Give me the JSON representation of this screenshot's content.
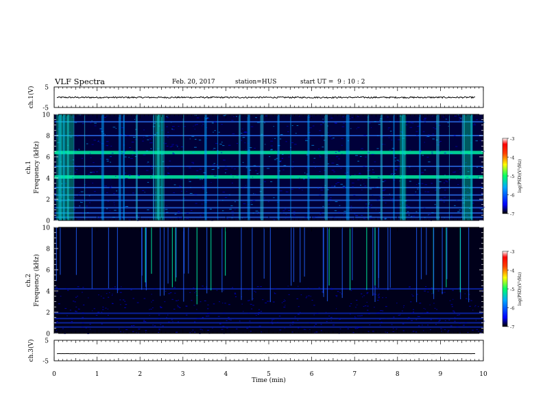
{
  "header": {
    "title": "VLF Spectra",
    "date": "Feb. 20, 2017",
    "station": "station=HUS",
    "start": "start UT =  9 : 10 : 2"
  },
  "chart_data": [
    {
      "type": "line",
      "panel": "ch1-waveform",
      "ylabel": "ch.1(V)",
      "ylim": [
        -5,
        5
      ],
      "yticks": [
        "5",
        "-5"
      ],
      "xlim": [
        0,
        10
      ],
      "series": [
        {
          "values_description_constant": -0.1
        }
      ]
    },
    {
      "type": "heatmap",
      "panel": "ch1-spectrogram",
      "ylabel": "ch.1\nFrequency (kHz)",
      "ylabel_line1": "ch.1",
      "ylabel_line2": "Frequency (kHz)",
      "ylim": [
        0,
        10
      ],
      "yticks": [
        "0",
        "2",
        "4",
        "6",
        "8",
        "10"
      ],
      "xlim": [
        0,
        10
      ],
      "colorbar": {
        "label": "log(PSD)(V²/Hz)",
        "ticks": [
          "-3",
          "-4",
          "-5",
          "-6",
          "-7"
        ],
        "range": [
          -7,
          -3
        ]
      },
      "bands_khz": [
        0.3,
        0.7,
        1.2,
        1.9,
        2.4,
        3.1,
        4.1,
        5.1,
        6.4,
        8.0,
        9.3
      ]
    },
    {
      "type": "heatmap",
      "panel": "ch2-spectrogram",
      "ylabel_line1": "ch.2",
      "ylabel_line2": "Frequency (kHz)",
      "ylim": [
        0,
        10
      ],
      "yticks": [
        "0",
        "2",
        "4",
        "6",
        "8",
        "10"
      ],
      "xlim": [
        0,
        10
      ],
      "colorbar": {
        "label": "log(PSD)(V²/Hz)",
        "ticks": [
          "-3",
          "-4",
          "-5",
          "-6",
          "-7"
        ],
        "range": [
          -7,
          -3
        ]
      },
      "bands_khz": [
        0.6,
        1.0,
        1.4,
        1.9,
        4.2
      ]
    },
    {
      "type": "line",
      "panel": "ch3-waveform",
      "ylabel": "ch.3(V)",
      "ylim": [
        -5,
        5
      ],
      "yticks": [
        "5",
        "-5"
      ],
      "xlim": [
        0,
        10
      ],
      "xlabel": "Time (min)",
      "xticks": [
        "0",
        "1",
        "2",
        "3",
        "4",
        "5",
        "6",
        "7",
        "8",
        "9",
        "10"
      ],
      "series": [
        {
          "values_description_constant": -1.5
        }
      ]
    }
  ],
  "colors": {
    "background": "#000033",
    "deep": "#0000cc",
    "mid": "#00a0ff",
    "bright": "#00ffaa"
  }
}
